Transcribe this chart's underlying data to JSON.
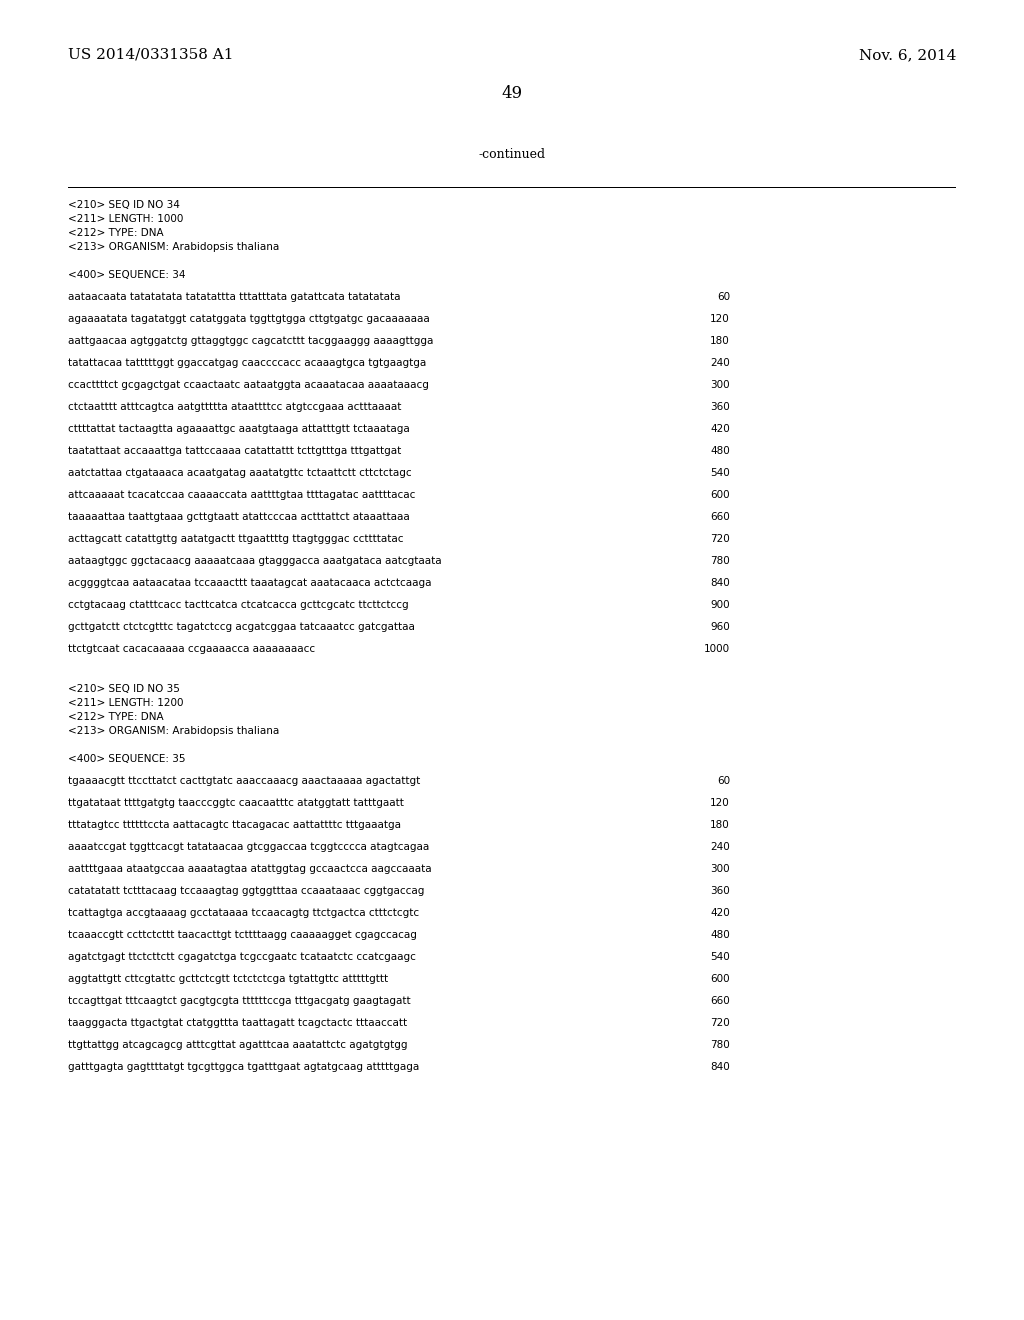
{
  "background_color": "#ffffff",
  "page_width": 10.24,
  "page_height": 13.2,
  "dpi": 100,
  "header_left": "US 2014/0331358 A1",
  "header_right": "Nov. 6, 2014",
  "page_number": "49",
  "continued_text": "-continued",
  "font_color": "#000000",
  "monospace_font": "Courier New",
  "serif_font": "DejaVu Serif",
  "header_fontsize": 11,
  "pagenumber_fontsize": 12,
  "continued_fontsize": 9,
  "meta_fontsize": 7.5,
  "seq_fontsize": 7.5,
  "seq_meta_34": [
    "<210> SEQ ID NO 34",
    "<211> LENGTH: 1000",
    "<212> TYPE: DNA",
    "<213> ORGANISM: Arabidopsis thaliana"
  ],
  "seq_label_34": "<400> SEQUENCE: 34",
  "seq_data_34": [
    [
      "aataacaata tatatatata tatatattta tttatttata gatattcata tatatatata",
      "60"
    ],
    [
      "agaaaatata tagatatggt catatggata tggttgtgga cttgtgatgc gacaaaaaaa",
      "120"
    ],
    [
      "aattgaacaa agtggatctg gttaggtggc cagcatcttt tacggaaggg aaaagttgga",
      "180"
    ],
    [
      "tatattacaa tatttttggt ggaccatgag caaccccacc acaaagtgca tgtgaagtga",
      "240"
    ],
    [
      "ccacttttct gcgagctgat ccaactaatc aataatggta acaaatacaa aaaataaacg",
      "300"
    ],
    [
      "ctctaatttt atttcagtca aatgttttta ataattttcc atgtccgaaa actttaaaat",
      "360"
    ],
    [
      "cttttattat tactaagtta agaaaattgc aaatgtaaga attatttgtt tctaaataga",
      "420"
    ],
    [
      "taatattaat accaaattga tattccaaaa catattattt tcttgtttga tttgattgat",
      "480"
    ],
    [
      "aatctattaa ctgataaaca acaatgatag aaatatgttc tctaattctt cttctctagc",
      "540"
    ],
    [
      "attcaaaaat tcacatccaa caaaaccata aattttgtaa ttttagatac aattttacac",
      "600"
    ],
    [
      "taaaaattaa taattgtaaa gcttgtaatt atattcccaa actttattct ataaattaaa",
      "660"
    ],
    [
      "acttagcatt catattgttg aatatgactt ttgaattttg ttagtgggac ccttttatac",
      "720"
    ],
    [
      "aataagtggc ggctacaacg aaaaatcaaa gtagggacca aaatgataca aatcgtaata",
      "780"
    ],
    [
      "acggggtcaa aataacataa tccaaacttt taaatagcat aaatacaaca actctcaaga",
      "840"
    ],
    [
      "cctgtacaag ctatttcacc tacttcatca ctcatcacca gcttcgcatc ttcttctccg",
      "900"
    ],
    [
      "gcttgatctt ctctcgtttc tagatctccg acgatcggaa tatcaaatcc gatcgattaa",
      "960"
    ],
    [
      "ttctgtcaat cacacaaaaa ccgaaaacca aaaaaaaacc",
      "1000"
    ]
  ],
  "seq_meta_35": [
    "<210> SEQ ID NO 35",
    "<211> LENGTH: 1200",
    "<212> TYPE: DNA",
    "<213> ORGANISM: Arabidopsis thaliana"
  ],
  "seq_label_35": "<400> SEQUENCE: 35",
  "seq_data_35": [
    [
      "tgaaaacgtt ttccttatct cacttgtatc aaaccaaacg aaactaaaaa agactattgt",
      "60"
    ],
    [
      "ttgatataat ttttgatgtg taacccggtc caacaatttc atatggtatt tatttgaatt",
      "120"
    ],
    [
      "tttatagtcc ttttttccta aattacagtc ttacagacac aattattttc tttgaaatga",
      "180"
    ],
    [
      "aaaatccgat tggttcacgt tatataacaa gtcggaccaa tcggtcccca atagtcagaa",
      "240"
    ],
    [
      "aattttgaaa ataatgccaa aaaatagtaa atattggtag gccaactcca aagccaaata",
      "300"
    ],
    [
      "catatatatt tctttacaag tccaaagtag ggtggtttaa ccaaataaac cggtgaccag",
      "360"
    ],
    [
      "tcattagtga accgtaaaag gcctataaaa tccaacagtg ttctgactca ctttctcgtc",
      "420"
    ],
    [
      "tcaaaccgtt ccttctcttt taacacttgt tcttttaagg caaaaagget cgagccacag",
      "480"
    ],
    [
      "agatctgagt ttctcttctt cgagatctga tcgccgaatc tcataatctc ccatcgaagc",
      "540"
    ],
    [
      "aggtattgtt cttcgtattc gcttctcgtt tctctctcga tgtattgttc atttttgttt",
      "600"
    ],
    [
      "tccagttgat tttcaagtct gacgtgcgta ttttttccga tttgacgatg gaagtagatt",
      "660"
    ],
    [
      "taagggacta ttgactgtat ctatggttta taattagatt tcagctactc tttaaccatt",
      "720"
    ],
    [
      "ttgttattgg atcagcagcg atttcgttat agatttcaa aaatattctc agatgtgtgg",
      "780"
    ],
    [
      "gatttgagta gagttttatgt tgcgttggca tgatttgaat agtatgcaag atttttgaga",
      "840"
    ]
  ]
}
